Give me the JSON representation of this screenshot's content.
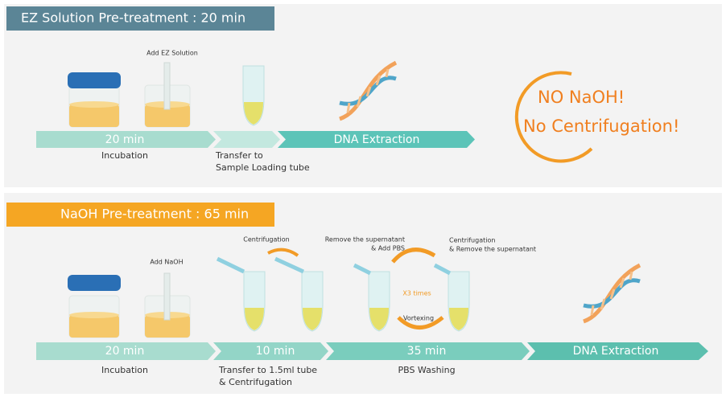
{
  "panel_ez": {
    "header": "EZ Solution Pre-treatment : 20 min",
    "annotation": "Add EZ Solution",
    "steps": [
      "20 min",
      "DNA Extraction"
    ],
    "captions": {
      "incubation": "Incubation",
      "transfer": [
        "Transfer to",
        "Sample Loading tube"
      ]
    },
    "callout": [
      "NO NaOH!",
      "No Centrifugation!"
    ]
  },
  "panel_naoh": {
    "header": "NaOH Pre-treatment : 65 min",
    "annotations": {
      "add": "Add NaOH",
      "centrifugation": "Centrifugation",
      "remove_add": [
        "Remove the supernatant",
        "& Add PBS"
      ],
      "centrifuge_remove": [
        "Centrifugation",
        "& Remove the supernatant"
      ],
      "repeat": "X3 times",
      "vortex": "Vortexing"
    },
    "steps": [
      "20 min",
      "10 min",
      "35 min",
      "DNA Extraction"
    ],
    "captions": {
      "incubation": "Incubation",
      "transfer": [
        "Transfer to 1.5ml tube",
        "& Centrifugation"
      ],
      "washing": "PBS Washing"
    }
  }
}
